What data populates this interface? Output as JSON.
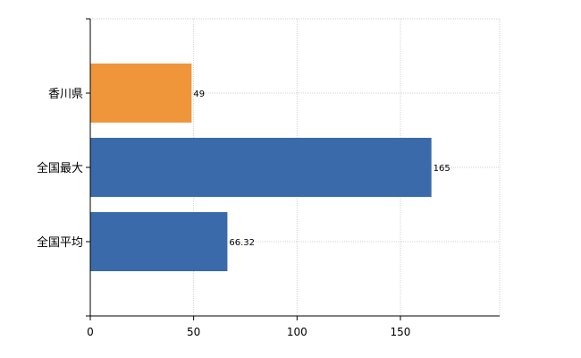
{
  "chart_data": {
    "type": "bar",
    "orientation": "horizontal",
    "categories": [
      "香川県",
      "全国最大",
      "全国平均"
    ],
    "values": [
      49,
      165,
      66.32
    ],
    "value_labels": [
      "49",
      "165",
      "66.32"
    ],
    "colors": [
      "#f0963a",
      "#3a6aaa"
    ],
    "bar_colors": [
      "#f0963a",
      "#3a6aaa",
      "#3a6aaa"
    ],
    "xlim": [
      0,
      198
    ],
    "xticks": [
      0,
      50,
      100,
      150
    ],
    "xtick_labels": [
      "0",
      "50",
      "100",
      "150"
    ],
    "grid": true
  }
}
